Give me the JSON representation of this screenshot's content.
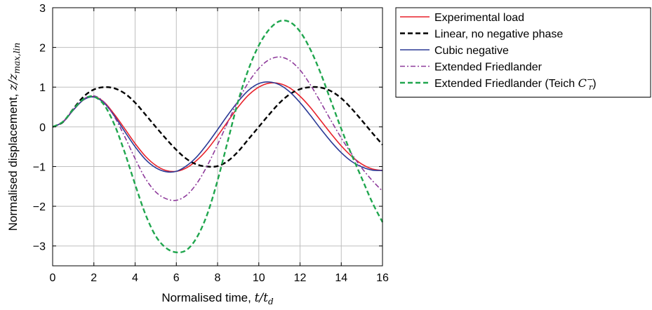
{
  "chart_data": {
    "type": "line",
    "xlabel": "Normalised time, ",
    "xlabel_math": "t/t",
    "xlabel_math_sub": "d",
    "ylabel": "Normalised displacement, ",
    "ylabel_math": "z/z",
    "ylabel_math_sub": "max,lin",
    "xlim": [
      0,
      16
    ],
    "ylim": [
      -3.5,
      3
    ],
    "xticks": [
      0,
      2,
      4,
      6,
      8,
      10,
      12,
      14,
      16
    ],
    "yticks": [
      3,
      2,
      1,
      0,
      -1,
      -2,
      -3
    ],
    "xtick_labels": [
      "0",
      "2",
      "4",
      "6",
      "8",
      "10",
      "12",
      "14",
      "16"
    ],
    "ytick_labels": [
      "3",
      "2",
      "1",
      "0",
      "−1",
      "−2",
      "−3"
    ],
    "grid": true,
    "legend_position": "outside-right-top",
    "series": [
      {
        "name": "Experimental load",
        "color": "#e8212a",
        "dash": "solid",
        "x": [
          0,
          0.5,
          1,
          1.5,
          2,
          2.5,
          3,
          3.5,
          4,
          4.5,
          5,
          5.5,
          6,
          6.5,
          7,
          7.5,
          8,
          8.5,
          9,
          9.5,
          10,
          10.5,
          11,
          11.5,
          12,
          12.5,
          13,
          13.5,
          14,
          14.5,
          15,
          15.5,
          16
        ],
        "values": [
          0,
          0.12,
          0.42,
          0.68,
          0.76,
          0.62,
          0.31,
          -0.05,
          -0.42,
          -0.74,
          -0.97,
          -1.1,
          -1.12,
          -1.03,
          -0.84,
          -0.57,
          -0.23,
          0.14,
          0.5,
          0.8,
          1.0,
          1.1,
          1.09,
          0.98,
          0.77,
          0.49,
          0.16,
          -0.17,
          -0.48,
          -0.74,
          -0.94,
          -1.06,
          -1.1
        ]
      },
      {
        "name": "Linear, no negative phase",
        "color": "#000000",
        "dash": "dashed",
        "x": [
          0,
          0.5,
          1,
          1.5,
          2,
          2.5,
          3,
          3.5,
          4,
          4.5,
          5,
          5.5,
          6,
          6.5,
          7,
          7.5,
          8,
          8.5,
          9,
          9.5,
          10,
          10.5,
          11,
          11.5,
          12,
          12.5,
          13,
          13.5,
          14,
          14.5,
          15,
          15.5,
          16
        ],
        "values": [
          0,
          0.12,
          0.45,
          0.76,
          0.94,
          1.0,
          0.97,
          0.84,
          0.61,
          0.31,
          0.0,
          -0.3,
          -0.58,
          -0.81,
          -0.95,
          -1.0,
          -0.99,
          -0.86,
          -0.62,
          -0.31,
          0.0,
          0.31,
          0.6,
          0.82,
          0.95,
          1.0,
          0.99,
          0.9,
          0.72,
          0.46,
          0.16,
          -0.15,
          -0.45
        ]
      },
      {
        "name": "Cubic negative",
        "color": "#2b3a96",
        "dash": "solid",
        "x": [
          0,
          0.5,
          1,
          1.5,
          2,
          2.5,
          3,
          3.5,
          4,
          4.5,
          5,
          5.5,
          6,
          6.5,
          7,
          7.5,
          8,
          8.5,
          9,
          9.5,
          10,
          10.5,
          11,
          11.5,
          12,
          12.5,
          13,
          13.5,
          14,
          14.5,
          15,
          15.5,
          16
        ],
        "values": [
          0,
          0.12,
          0.42,
          0.68,
          0.75,
          0.6,
          0.27,
          -0.12,
          -0.5,
          -0.82,
          -1.03,
          -1.13,
          -1.12,
          -0.98,
          -0.75,
          -0.43,
          -0.07,
          0.3,
          0.64,
          0.92,
          1.09,
          1.13,
          1.06,
          0.88,
          0.61,
          0.29,
          -0.05,
          -0.37,
          -0.65,
          -0.87,
          -1.01,
          -1.09,
          -1.1
        ]
      },
      {
        "name": "Extended Friedlander",
        "color": "#8e3a9b",
        "dash": "dashdot",
        "x": [
          0,
          0.5,
          1,
          1.5,
          2,
          2.5,
          3,
          3.5,
          4,
          4.5,
          5,
          5.5,
          6,
          6.5,
          7,
          7.5,
          8,
          8.5,
          9,
          9.5,
          10,
          10.5,
          11,
          11.5,
          12,
          12.5,
          13,
          13.5,
          14,
          14.5,
          15,
          15.5,
          16
        ],
        "values": [
          0,
          0.13,
          0.44,
          0.7,
          0.78,
          0.62,
          0.25,
          -0.25,
          -0.8,
          -1.3,
          -1.64,
          -1.81,
          -1.85,
          -1.72,
          -1.42,
          -0.98,
          -0.45,
          0.12,
          0.66,
          1.12,
          1.47,
          1.69,
          1.76,
          1.67,
          1.43,
          1.06,
          0.62,
          0.16,
          -0.28,
          -0.68,
          -1.04,
          -1.35,
          -1.62
        ]
      },
      {
        "name": "Extended Friedlander (Teich ",
        "name_math": "C",
        "name_math_sub": "r",
        "name_math_sup": "−",
        "name_suffix": ")",
        "color": "#20a64e",
        "dash": "dashed",
        "x": [
          0,
          0.5,
          1,
          1.5,
          2,
          2.5,
          3,
          3.5,
          4,
          4.5,
          5,
          5.5,
          6,
          6.5,
          7,
          7.5,
          8,
          8.5,
          9,
          9.5,
          10,
          10.5,
          11,
          11.5,
          12,
          12.5,
          13,
          13.5,
          14,
          14.5,
          15,
          15.5,
          16
        ],
        "values": [
          0,
          0.13,
          0.44,
          0.7,
          0.76,
          0.55,
          0.05,
          -0.65,
          -1.45,
          -2.2,
          -2.75,
          -3.05,
          -3.16,
          -3.1,
          -2.78,
          -2.2,
          -1.35,
          -0.35,
          0.65,
          1.45,
          2.05,
          2.45,
          2.66,
          2.64,
          2.4,
          1.95,
          1.35,
          0.65,
          -0.05,
          -0.7,
          -1.3,
          -1.9,
          -2.4
        ]
      }
    ]
  }
}
